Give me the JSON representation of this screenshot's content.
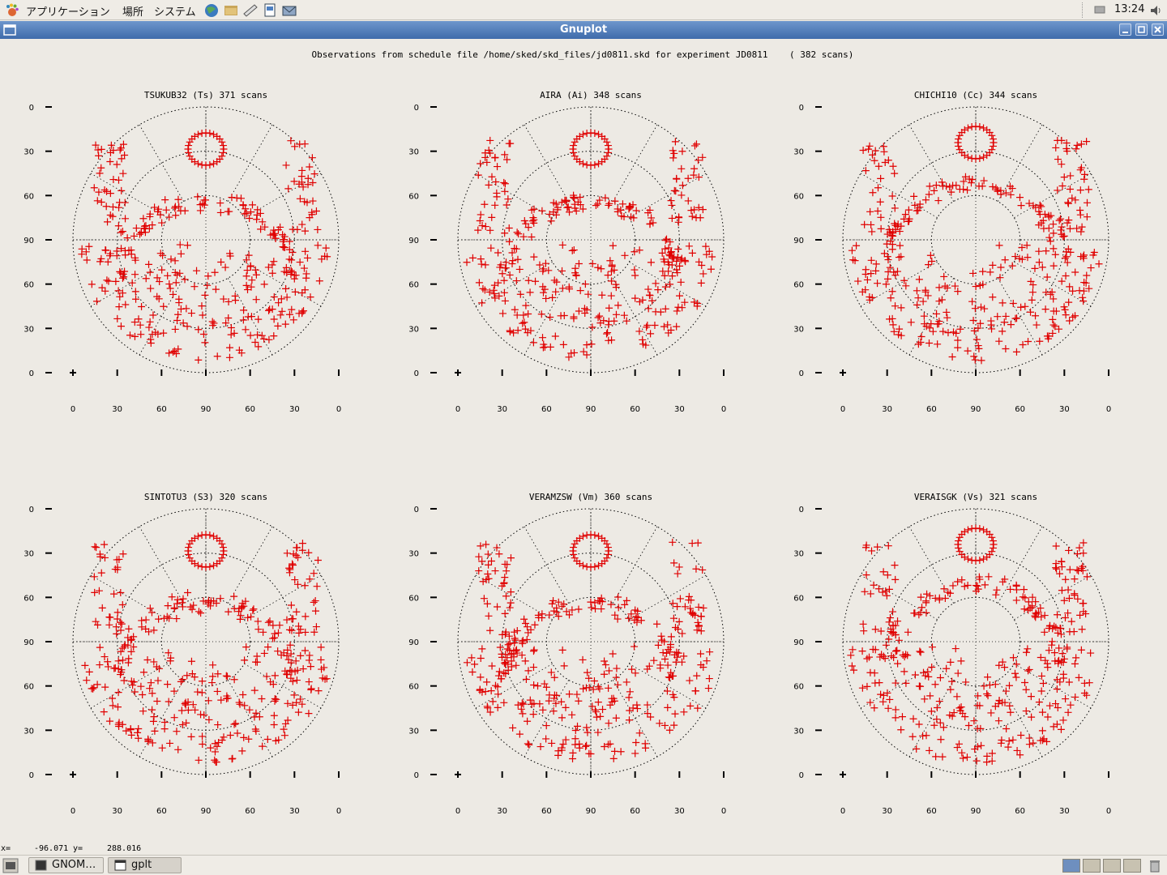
{
  "top_panel": {
    "menu_applications": "アプリケーション",
    "menu_places": "場所",
    "menu_system": "システム",
    "clock": "13:24"
  },
  "window": {
    "title": "Gnuplot"
  },
  "plot": {
    "header": "Observations from schedule file /home/sked/skd_files/jd0811.skd for experiment JD0811    ( 382 scans)",
    "y_ticks": [
      "0",
      "30",
      "60",
      "90",
      "60",
      "30",
      "0"
    ],
    "x_ticks": [
      "0",
      "30",
      "60",
      "90",
      "60",
      "30",
      "0"
    ],
    "marker_color": "#e00000"
  },
  "chart_data": [
    {
      "type": "scatter",
      "title": "TSUKUB32 (Ts)  371 scans",
      "xlim": [
        0,
        180
      ],
      "ylim": [
        0,
        180
      ]
    },
    {
      "type": "scatter",
      "title": "AIRA (Ai)  348 scans",
      "xlim": [
        0,
        180
      ],
      "ylim": [
        0,
        180
      ]
    },
    {
      "type": "scatter",
      "title": "CHICHI10 (Cc)  344 scans",
      "xlim": [
        0,
        180
      ],
      "ylim": [
        0,
        180
      ]
    },
    {
      "type": "scatter",
      "title": "SINTOTU3 (S3)  320 scans",
      "xlim": [
        0,
        180
      ],
      "ylim": [
        0,
        180
      ]
    },
    {
      "type": "scatter",
      "title": "VERAMZSW (Vm)  360 scans",
      "xlim": [
        0,
        180
      ],
      "ylim": [
        0,
        180
      ]
    },
    {
      "type": "scatter",
      "title": "VERAISGK (Vs)  321 scans",
      "xlim": [
        0,
        180
      ],
      "ylim": [
        0,
        180
      ]
    }
  ],
  "status": {
    "x_label": "x=",
    "x_value": "-96.071",
    "y_label": "y=",
    "y_value": "288.016"
  },
  "taskbar": {
    "tasks": [
      {
        "label": "GNOM…"
      },
      {
        "label": "gplt"
      }
    ]
  }
}
